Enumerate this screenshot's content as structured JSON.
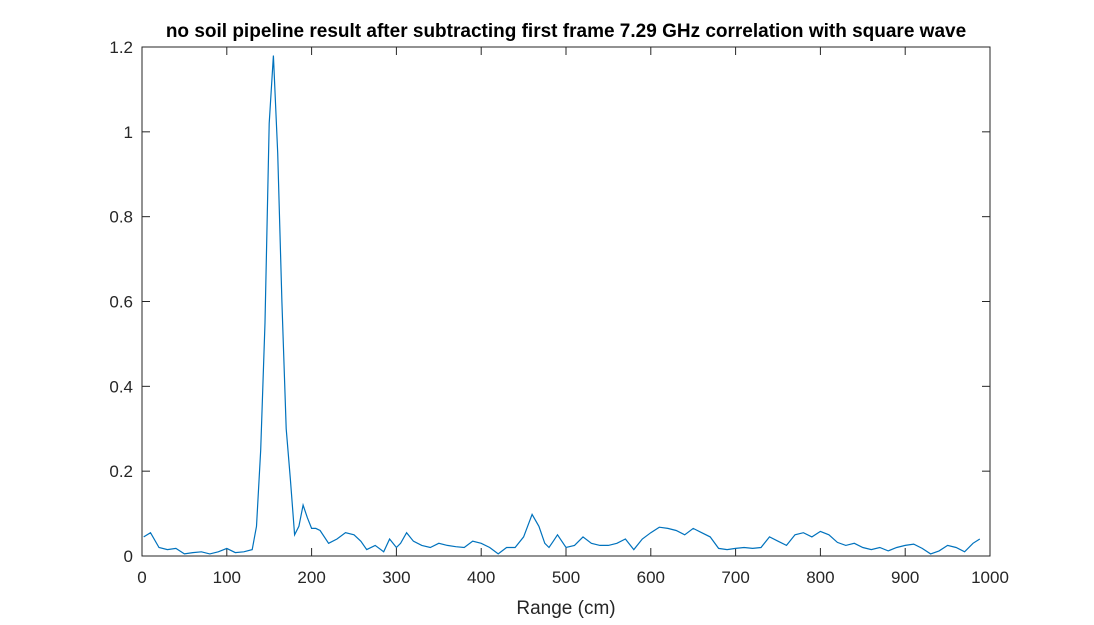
{
  "chart_data": {
    "type": "line",
    "title": "no soil pipeline result after subtracting first frame 7.29 GHz correlation with square wave",
    "xlabel": "Range (cm)",
    "ylabel": "",
    "xlim": [
      0,
      1000
    ],
    "ylim": [
      0,
      1.2
    ],
    "xticks": [
      0,
      100,
      200,
      300,
      400,
      500,
      600,
      700,
      800,
      900,
      1000
    ],
    "yticks": [
      0,
      0.2,
      0.4,
      0.6,
      0.8,
      1,
      1.2
    ],
    "xtick_labels": [
      "0",
      "100",
      "200",
      "300",
      "400",
      "500",
      "600",
      "700",
      "800",
      "900",
      "1000"
    ],
    "ytick_labels": [
      "0",
      "0.2",
      "0.4",
      "0.6",
      "0.8",
      "1",
      "1.2"
    ],
    "grid": false,
    "line_color": "#0072BD",
    "series": [
      {
        "x": [
          2,
          10,
          20,
          30,
          40,
          50,
          60,
          70,
          80,
          90,
          100,
          110,
          120,
          130,
          135,
          140,
          145,
          150,
          155,
          160,
          165,
          170,
          175,
          180,
          185,
          190,
          195,
          200,
          205,
          210,
          220,
          230,
          240,
          250,
          258,
          265,
          275,
          285,
          292,
          300,
          305,
          312,
          320,
          330,
          340,
          350,
          360,
          370,
          380,
          390,
          400,
          410,
          420,
          430,
          440,
          450,
          460,
          468,
          475,
          480,
          485,
          490,
          500,
          510,
          520,
          530,
          540,
          550,
          560,
          570,
          580,
          590,
          600,
          610,
          620,
          630,
          640,
          650,
          660,
          670,
          680,
          690,
          700,
          710,
          720,
          730,
          740,
          750,
          760,
          770,
          780,
          790,
          800,
          810,
          820,
          830,
          840,
          850,
          860,
          870,
          880,
          890,
          900,
          910,
          920,
          930,
          940,
          950,
          960,
          970,
          980,
          988
        ],
        "y": [
          0.045,
          0.055,
          0.02,
          0.015,
          0.018,
          0.005,
          0.008,
          0.01,
          0.005,
          0.01,
          0.018,
          0.008,
          0.01,
          0.015,
          0.07,
          0.25,
          0.55,
          1.02,
          1.18,
          0.95,
          0.6,
          0.3,
          0.18,
          0.05,
          0.07,
          0.12,
          0.09,
          0.065,
          0.065,
          0.06,
          0.03,
          0.04,
          0.055,
          0.05,
          0.035,
          0.015,
          0.025,
          0.01,
          0.04,
          0.02,
          0.03,
          0.055,
          0.035,
          0.025,
          0.02,
          0.03,
          0.025,
          0.022,
          0.02,
          0.035,
          0.03,
          0.02,
          0.005,
          0.02,
          0.02,
          0.045,
          0.098,
          0.07,
          0.03,
          0.02,
          0.035,
          0.05,
          0.02,
          0.025,
          0.045,
          0.03,
          0.025,
          0.025,
          0.03,
          0.04,
          0.015,
          0.04,
          0.055,
          0.068,
          0.065,
          0.06,
          0.05,
          0.065,
          0.055,
          0.045,
          0.018,
          0.015,
          0.018,
          0.02,
          0.018,
          0.02,
          0.045,
          0.035,
          0.025,
          0.05,
          0.055,
          0.045,
          0.058,
          0.05,
          0.032,
          0.025,
          0.03,
          0.02,
          0.015,
          0.02,
          0.012,
          0.02,
          0.025,
          0.028,
          0.018,
          0.005,
          0.012,
          0.025,
          0.02,
          0.01,
          0.03,
          0.04
        ]
      }
    ]
  }
}
